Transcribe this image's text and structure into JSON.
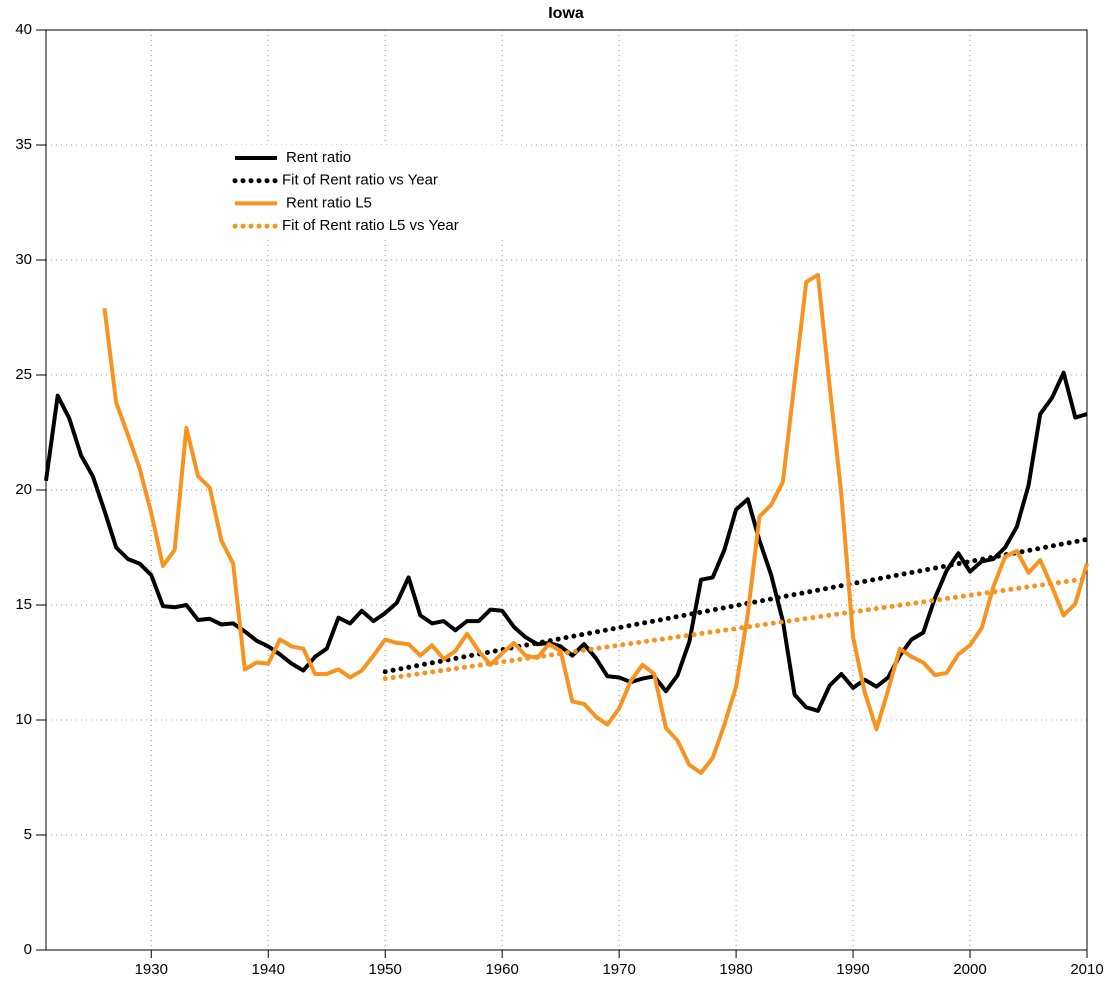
{
  "chart_data": {
    "type": "line",
    "title": "Iowa",
    "x": [
      1921,
      1922,
      1923,
      1924,
      1925,
      1926,
      1927,
      1928,
      1929,
      1930,
      1931,
      1932,
      1933,
      1934,
      1935,
      1936,
      1937,
      1938,
      1939,
      1940,
      1941,
      1942,
      1943,
      1944,
      1945,
      1946,
      1947,
      1948,
      1949,
      1950,
      1951,
      1952,
      1953,
      1954,
      1955,
      1956,
      1957,
      1958,
      1959,
      1960,
      1961,
      1962,
      1963,
      1964,
      1965,
      1966,
      1967,
      1968,
      1969,
      1970,
      1971,
      1972,
      1973,
      1974,
      1975,
      1976,
      1977,
      1978,
      1979,
      1980,
      1981,
      1982,
      1983,
      1984,
      1985,
      1986,
      1987,
      1988,
      1989,
      1990,
      1991,
      1992,
      1993,
      1994,
      1995,
      1996,
      1997,
      1998,
      1999,
      2000,
      2001,
      2002,
      2003,
      2004,
      2005,
      2006,
      2007,
      2008,
      2009,
      2010
    ],
    "series": [
      {
        "name": "Rent ratio",
        "color": "#000000",
        "style": "solid",
        "values": [
          20.4,
          24.1,
          23.1,
          21.5,
          20.6,
          19.1,
          17.5,
          17.0,
          16.8,
          16.3,
          14.95,
          14.9,
          15.0,
          14.35,
          14.4,
          14.15,
          14.2,
          13.85,
          13.45,
          13.2,
          12.85,
          12.45,
          12.15,
          12.75,
          13.1,
          14.45,
          14.2,
          14.75,
          14.3,
          14.65,
          15.1,
          16.2,
          14.55,
          14.2,
          14.3,
          13.9,
          14.3,
          14.3,
          14.8,
          14.75,
          14.05,
          13.6,
          13.3,
          13.35,
          13.2,
          12.8,
          13.3,
          12.7,
          11.9,
          11.85,
          11.65,
          11.8,
          11.9,
          11.25,
          11.95,
          13.4,
          16.1,
          16.2,
          17.4,
          19.15,
          19.6,
          17.8,
          16.3,
          14.3,
          11.1,
          10.55,
          10.4,
          11.5,
          12.0,
          11.4,
          11.75,
          11.45,
          11.85,
          12.8,
          13.5,
          13.8,
          15.3,
          16.5,
          17.25,
          16.45,
          16.9,
          17.0,
          17.5,
          18.4,
          20.2,
          23.3,
          24.0,
          25.1,
          23.15,
          23.3
        ]
      },
      {
        "name": "Fit of Rent ratio vs Year",
        "color": "#000000",
        "style": "dotted",
        "x": [
          1950,
          2010
        ],
        "values": [
          12.1,
          17.85
        ]
      },
      {
        "name": "Rent ratio L5",
        "color": "#f7931e",
        "style": "solid",
        "values": [
          null,
          null,
          null,
          null,
          null,
          27.9,
          23.8,
          22.4,
          20.95,
          19.0,
          16.7,
          17.4,
          22.7,
          20.6,
          20.1,
          17.8,
          16.8,
          12.2,
          12.5,
          12.45,
          13.5,
          13.2,
          13.1,
          12.0,
          12.0,
          12.2,
          11.85,
          12.15,
          12.8,
          13.5,
          13.35,
          13.3,
          12.8,
          13.25,
          12.65,
          13.0,
          13.75,
          13.0,
          12.4,
          12.9,
          13.35,
          12.8,
          12.7,
          13.3,
          13.0,
          10.8,
          10.7,
          10.15,
          9.8,
          10.5,
          11.7,
          12.4,
          12.0,
          9.65,
          9.1,
          8.05,
          7.7,
          8.35,
          9.8,
          11.45,
          14.6,
          18.85,
          19.35,
          20.35,
          24.7,
          29.05,
          29.35,
          24.5,
          19.8,
          13.6,
          11.2,
          9.6,
          11.3,
          13.1,
          12.75,
          12.5,
          11.95,
          12.05,
          12.85,
          13.25,
          14.0,
          15.8,
          17.1,
          17.35,
          16.4,
          16.95,
          15.8,
          14.55,
          15.05,
          16.8
        ]
      },
      {
        "name": "Fit of Rent ratio L5 vs Year",
        "color": "#f7931e",
        "style": "dotted",
        "x": [
          1950,
          2010
        ],
        "values": [
          11.8,
          16.15
        ]
      }
    ],
    "xlim": [
      1921,
      2010
    ],
    "xticks": [
      1930,
      1940,
      1950,
      1960,
      1970,
      1980,
      1990,
      2000,
      2010
    ],
    "ylim": [
      0,
      40
    ],
    "yticks": [
      0,
      5,
      10,
      15,
      20,
      25,
      30,
      35,
      40
    ],
    "grid": true
  }
}
